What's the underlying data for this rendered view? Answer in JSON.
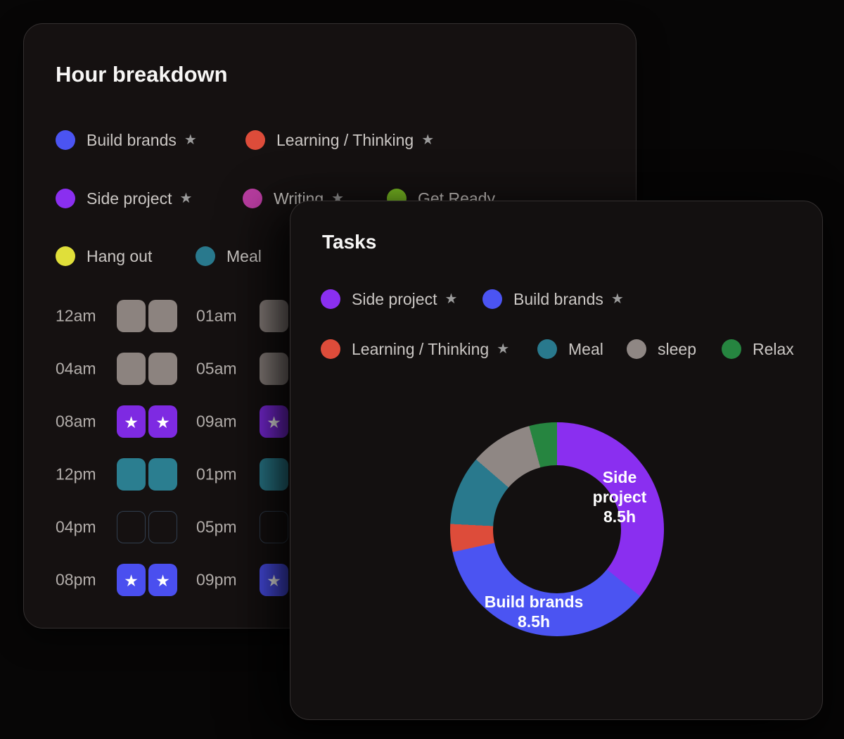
{
  "page": {
    "background": "#070606"
  },
  "hour_card": {
    "title": "Hour breakdown",
    "legend_rows": [
      [
        {
          "label": "Build brands",
          "color": "#4b54f2",
          "starred": true
        },
        {
          "label": "Learning / Thinking",
          "color": "#dd4c3a",
          "starred": true
        }
      ],
      [
        {
          "label": "Side project",
          "color": "#8a2ff0",
          "starred": true
        },
        {
          "label": "Writing",
          "color": "#b93da1",
          "starred": true
        },
        {
          "label": "Get Ready",
          "color": "#77b822",
          "starred": false
        }
      ],
      [
        {
          "label": "Hang out",
          "color": "#e0df3a",
          "starred": false
        },
        {
          "label": "Meal",
          "color": "#29798d",
          "starred": false
        }
      ]
    ],
    "cell_types": {
      "sleep": {
        "fill": "#8c837f",
        "star": false
      },
      "side_project": {
        "fill": "#7e2ae2",
        "star": true
      },
      "meal": {
        "fill": "#2b7e90",
        "star": false
      },
      "empty": {
        "fill": "transparent",
        "star": false,
        "outline": "#313e4e"
      },
      "build_brands": {
        "fill": "#4a4fef",
        "star": true
      }
    },
    "grid_rows": [
      {
        "slots": [
          {
            "label": "12am",
            "cells": [
              "sleep",
              "sleep"
            ]
          },
          {
            "label": "01am",
            "cells": [
              "sleep",
              "sleep"
            ]
          }
        ]
      },
      {
        "slots": [
          {
            "label": "04am",
            "cells": [
              "sleep",
              "sleep"
            ]
          },
          {
            "label": "05am",
            "cells": [
              "sleep",
              "sleep"
            ]
          }
        ]
      },
      {
        "slots": [
          {
            "label": "08am",
            "cells": [
              "side_project",
              "side_project"
            ]
          },
          {
            "label": "09am",
            "cells": [
              "side_project",
              "side_project"
            ]
          }
        ]
      },
      {
        "slots": [
          {
            "label": "12pm",
            "cells": [
              "meal",
              "meal"
            ]
          },
          {
            "label": "01pm",
            "cells": [
              "meal",
              "meal"
            ]
          }
        ]
      },
      {
        "slots": [
          {
            "label": "04pm",
            "cells": [
              "empty",
              "empty"
            ]
          },
          {
            "label": "05pm",
            "cells": [
              "empty",
              "empty"
            ]
          }
        ]
      },
      {
        "slots": [
          {
            "label": "08pm",
            "cells": [
              "build_brands",
              "build_brands"
            ]
          },
          {
            "label": "09pm",
            "cells": [
              "build_brands",
              "build_brands"
            ]
          }
        ]
      }
    ]
  },
  "tasks_card": {
    "title": "Tasks",
    "legend_rows": [
      [
        {
          "label": "Side project",
          "color": "#8a2ff0",
          "starred": true
        },
        {
          "label": "Build brands",
          "color": "#4b54f2",
          "starred": true
        }
      ],
      [
        {
          "label": "Learning / Thinking",
          "color": "#dd4c3a",
          "starred": true
        },
        {
          "label": "Meal",
          "color": "#29798d",
          "starred": false
        },
        {
          "label": "sleep",
          "color": "#8f8784",
          "starred": false
        },
        {
          "label": "Relax",
          "color": "#268540",
          "starred": false
        }
      ]
    ],
    "donut_labels": [
      {
        "text": "Side project",
        "value": "8.5h"
      },
      {
        "text": "Build brands",
        "value": "8.5h"
      }
    ]
  },
  "chart_data": {
    "type": "pie",
    "donut": true,
    "title": "Tasks",
    "categories": [
      "Side project",
      "Build brands",
      "Learning / Thinking",
      "Meal",
      "sleep",
      "Relax"
    ],
    "values": [
      8.5,
      8.5,
      1,
      2.5,
      2.25,
      1
    ],
    "unit": "h",
    "colors": [
      "#8a2ff0",
      "#4b54f2",
      "#dd4c3a",
      "#29798d",
      "#8f8784",
      "#268540"
    ],
    "start_angle_deg": 0,
    "legend_position": "top",
    "visible_slice_labels": [
      "Side project 8.5h",
      "Build brands 8.5h"
    ]
  }
}
